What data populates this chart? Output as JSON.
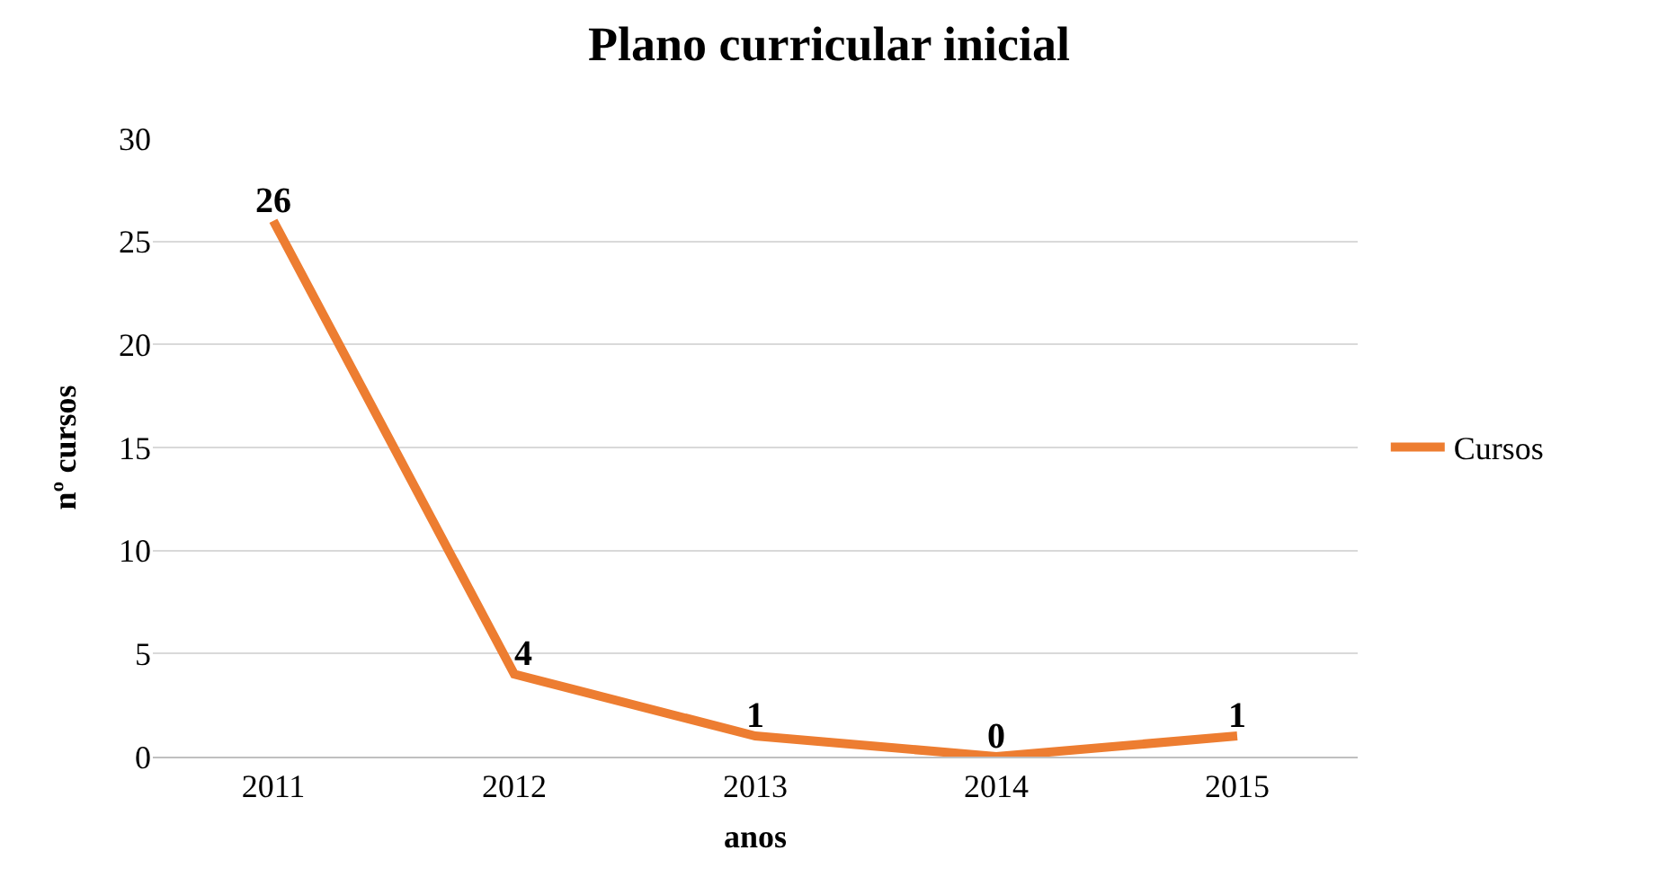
{
  "chart_data": {
    "type": "line",
    "title": "Plano curricular inicial",
    "xlabel": "anos",
    "ylabel": "nº cursos",
    "categories": [
      "2011",
      "2012",
      "2013",
      "2014",
      "2015"
    ],
    "series": [
      {
        "name": "Cursos",
        "color": "#ed7d31",
        "values": [
          26,
          4,
          1,
          0,
          1
        ]
      }
    ],
    "ylim": [
      0,
      30
    ],
    "yticks": [
      0,
      5,
      10,
      15,
      20,
      25,
      30
    ],
    "grid": "y",
    "legend": "right",
    "data_labels": true
  }
}
